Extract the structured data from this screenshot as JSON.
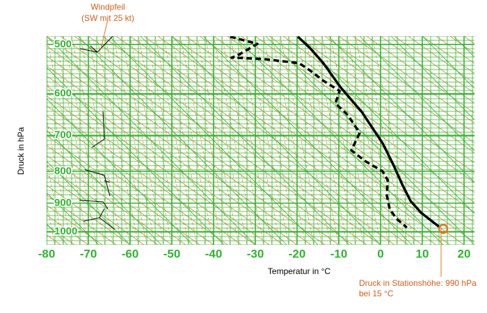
{
  "chart_data": {
    "type": "line",
    "xlabel": "Temperatur in °C",
    "ylabel": "Druck in hPa",
    "xlim": [
      -80,
      22.5
    ],
    "xticks": [
      -80,
      -70,
      -60,
      -50,
      -40,
      -30,
      -20,
      -10,
      0,
      10,
      20
    ],
    "ylim": [
      485,
      1050
    ],
    "yticks": [
      500,
      600,
      700,
      800,
      900,
      1000
    ],
    "y_log": true,
    "y_inverted": true,
    "grid": true,
    "series": [
      {
        "color": "#000000",
        "dashed": false,
        "x": [
          -19.8,
          -17,
          -13.7,
          -9.5,
          -4.5,
          0.5,
          3,
          5.2,
          7.2,
          9.7,
          13,
          14.3
        ],
        "values": [
          486,
          506,
          536,
          587,
          642,
          721,
          779,
          840,
          893,
          932,
          970,
          985
        ]
      },
      {
        "color": "#000000",
        "dashed": true,
        "x": [
          -36,
          -29.5,
          -34.5,
          -35.7,
          -27.8,
          -19.5,
          -17,
          -13.7,
          -9.8,
          -10.8,
          -7.8,
          -5,
          -7,
          -3.7,
          0.5,
          1.7,
          1.5,
          2.2,
          3.8,
          6.3
        ],
        "values": [
          486,
          499,
          522,
          525,
          528,
          536,
          550,
          572,
          594,
          622,
          650,
          694,
          740,
          770,
          800,
          826,
          875,
          920,
          953,
          985
        ]
      }
    ],
    "station": {
      "temperature": 15,
      "pressure": 990,
      "color": "#e8731a"
    },
    "annotations": [
      "Windpfeil",
      "(SW mit 25 kt)",
      "Druck in Stationshöhe: 990 hPa",
      "bei 15 °C"
    ]
  }
}
